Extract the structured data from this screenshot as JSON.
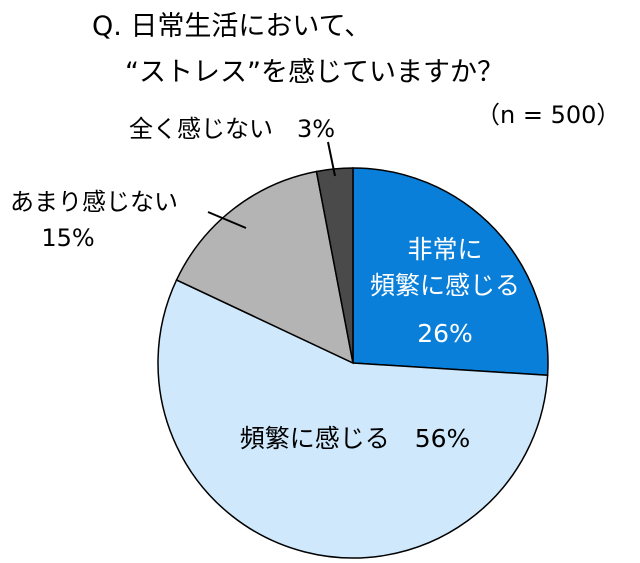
{
  "title_line1": "Q. 日常生活において、",
  "title_line2": "“ストレス”を感じていますか？",
  "sample_size": "（n = 500）",
  "chart_data": {
    "type": "pie",
    "unit": "%",
    "slices": [
      {
        "label_lines": [
          "非常に",
          "頻繁に感じる"
        ],
        "label": "非常に頻繁に感じる",
        "value": 26,
        "value_text": "26%",
        "color": "#0a7fd9",
        "text_color": "#ffffff",
        "label_style": "inside"
      },
      {
        "label_lines": [
          "頻繁に感じる"
        ],
        "label": "頻繁に感じる",
        "value": 56,
        "value_text": "56%",
        "color": "#cfe8fb",
        "text_color": "#000000",
        "label_style": "inside-inline"
      },
      {
        "label_lines": [
          "あまり感じない"
        ],
        "label": "あまり感じない",
        "value": 15,
        "value_text": "15%",
        "color": "#b4b4b4",
        "text_color": "#000000",
        "label_style": "outside-leader"
      },
      {
        "label_lines": [
          "全く感じない"
        ],
        "label": "全く感じない",
        "value": 3,
        "value_text": "3%",
        "color": "#4a4a4a",
        "text_color": "#000000",
        "label_style": "outside-leader"
      }
    ]
  }
}
